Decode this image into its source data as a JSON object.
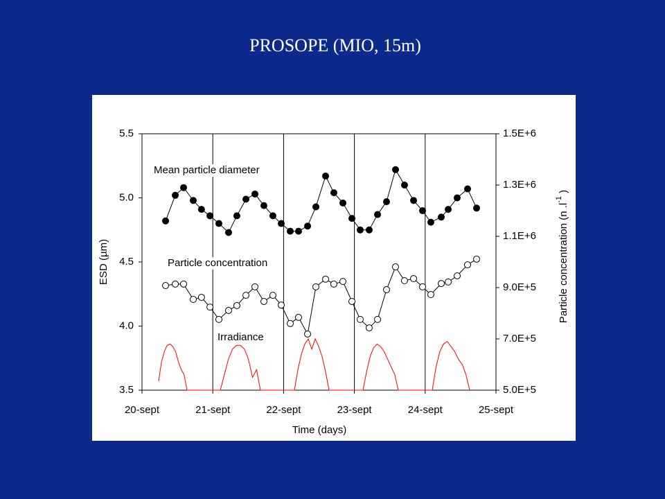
{
  "chart_data": {
    "type": "line",
    "title": "PROSOPE (MIO, 15m)",
    "xlabel": "Time (days)",
    "ylabel": "ESD (µm)",
    "y2label": {
      "text": "Particle concentration (n .l",
      "superscript": "-1",
      "close": " )"
    },
    "xlim": [
      0,
      5
    ],
    "xticks": [
      {
        "value": 0,
        "label": "20-sept"
      },
      {
        "value": 1,
        "label": "21-sept"
      },
      {
        "value": 2,
        "label": "22-sept"
      },
      {
        "value": 3,
        "label": "23-sept"
      },
      {
        "value": 4,
        "label": "24-sept"
      },
      {
        "value": 5,
        "label": "25-sept"
      }
    ],
    "grid_x": true,
    "ylim": [
      3.5,
      5.5
    ],
    "yticks": [
      3.5,
      {
        "value": 4,
        "label": "4.0"
      },
      4.5,
      {
        "value": 5,
        "label": "5.0"
      },
      5.5
    ],
    "y2lim": [
      500000,
      1500000
    ],
    "y2ticks": [
      {
        "value": 500000,
        "label": "5.0E+5"
      },
      {
        "value": 700000,
        "label": "7.0E+5"
      },
      {
        "value": 900000,
        "label": "9.0E+5"
      },
      {
        "value": 1100000,
        "label": "1.1E+6"
      },
      {
        "value": 1300000,
        "label": "1.3E+6"
      },
      {
        "value": 1500000,
        "label": "1.5E+6"
      }
    ],
    "series": [
      {
        "name": "Mean particle diameter",
        "color": "#000000",
        "marker": "filled",
        "x": [
          0.333,
          0.47,
          0.587,
          0.724,
          0.84,
          0.96,
          1.086,
          1.223,
          1.34,
          1.468,
          1.595,
          1.722,
          1.849,
          1.967,
          2.094,
          2.211,
          2.339,
          2.456,
          2.593,
          2.71,
          2.838,
          2.965,
          3.082,
          3.209,
          3.327,
          3.454,
          3.581,
          3.708,
          3.836,
          3.963,
          4.08,
          4.227,
          4.325,
          4.452,
          4.599,
          4.726
        ],
        "values": [
          4.82,
          5.02,
          5.08,
          4.98,
          4.91,
          4.86,
          4.8,
          4.73,
          4.86,
          4.99,
          5.03,
          4.94,
          4.86,
          4.8,
          4.74,
          4.74,
          4.78,
          4.93,
          5.17,
          5.04,
          4.96,
          4.84,
          4.75,
          4.75,
          4.87,
          4.97,
          5.22,
          5.1,
          4.98,
          4.9,
          4.81,
          4.85,
          4.91,
          5.0,
          5.07,
          4.92
        ]
      },
      {
        "name": "Particle concentration",
        "color": "#000000",
        "marker": "open",
        "axis": "y2",
        "x": [
          0.333,
          0.47,
          0.587,
          0.724,
          0.84,
          0.96,
          1.086,
          1.223,
          1.34,
          1.468,
          1.595,
          1.722,
          1.849,
          1.967,
          2.094,
          2.211,
          2.339,
          2.456,
          2.593,
          2.71,
          2.838,
          2.965,
          3.082,
          3.209,
          3.327,
          3.454,
          3.581,
          3.708,
          3.836,
          3.963,
          4.08,
          4.227,
          4.325,
          4.452,
          4.599,
          4.726
        ],
        "values": [
          908000,
          914000,
          914000,
          854000,
          862000,
          824000,
          776000,
          811000,
          830000,
          870000,
          903000,
          846000,
          870000,
          832000,
          760000,
          784000,
          719000,
          903000,
          933000,
          914000,
          924000,
          846000,
          776000,
          743000,
          776000,
          892000,
          981000,
          927000,
          935000,
          903000,
          873000,
          916000,
          922000,
          946000,
          989000,
          1011000
        ]
      },
      {
        "name": "Irradiance",
        "color": "#ff0000",
        "marker": "none",
        "x": [
          0.235,
          0.275,
          0.315,
          0.355,
          0.395,
          0.435,
          0.475,
          0.515,
          0.555,
          0.595,
          0.636,
          1.106,
          1.163,
          1.22,
          1.277,
          1.334,
          1.39,
          1.447,
          1.504,
          1.561,
          1.618,
          1.673,
          2.153,
          2.202,
          2.251,
          2.3,
          2.349,
          2.398,
          2.447,
          2.496,
          2.545,
          2.594,
          2.642,
          3.121,
          3.171,
          3.221,
          3.271,
          3.321,
          3.371,
          3.421,
          3.471,
          3.521,
          3.571,
          3.62,
          4.1,
          4.153,
          4.206,
          4.259,
          4.312,
          4.365,
          4.418,
          4.471,
          4.524,
          4.577,
          4.628
        ],
        "values": [
          3.57,
          3.72,
          3.8,
          3.85,
          3.86,
          3.84,
          3.8,
          3.72,
          3.66,
          3.62,
          3.5,
          3.5,
          3.62,
          3.74,
          3.82,
          3.85,
          3.85,
          3.82,
          3.74,
          3.6,
          3.66,
          3.5,
          3.5,
          3.66,
          3.78,
          3.86,
          3.9,
          3.82,
          3.9,
          3.84,
          3.76,
          3.64,
          3.5,
          3.5,
          3.64,
          3.76,
          3.83,
          3.86,
          3.84,
          3.8,
          3.74,
          3.68,
          3.62,
          3.5,
          3.5,
          3.68,
          3.8,
          3.86,
          3.88,
          3.84,
          3.8,
          3.74,
          3.7,
          3.62,
          3.5
        ]
      }
    ]
  }
}
